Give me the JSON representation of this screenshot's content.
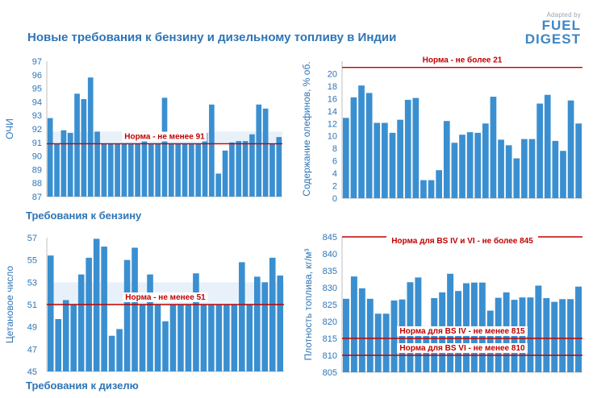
{
  "header": {
    "title": "Новые требования к бензину и дизельному топливу в Индии",
    "logo_adapted": "Adapted by",
    "logo_fuel": "FUEL",
    "logo_digest": "DIGEST"
  },
  "sections": {
    "gasoline": "Требования к бензину",
    "diesel": "Требования к дизелю"
  },
  "colors": {
    "bar": "#3a8fd0",
    "light_bar": "#e8f1fa",
    "norm_line": "#c00000",
    "norm_text": "#c00000",
    "axis_text": "#2e75b6"
  },
  "chart_data": [
    {
      "id": "octane",
      "type": "bar",
      "title": "",
      "xlabel": "",
      "ylabel": "ОЧИ",
      "ylim": [
        87,
        97
      ],
      "yticks": [
        87,
        88,
        89,
        90,
        91,
        92,
        93,
        94,
        95,
        96,
        97
      ],
      "values": [
        92.8,
        90.9,
        91.9,
        91.7,
        94.6,
        94.2,
        95.8,
        91.8,
        90.9,
        90.9,
        90.9,
        90.9,
        90.9,
        90.9,
        91.8,
        90.9,
        90.9,
        94.3,
        90.9,
        90.9,
        90.9,
        90.9,
        90.9,
        91.7,
        93.8,
        88.7,
        90.4,
        91.0,
        91.1,
        91.1,
        91.6,
        93.8,
        93.5,
        90.9,
        91.4
      ],
      "band": [
        90.9,
        91.8
      ],
      "norms": [
        {
          "value": 90.9,
          "label": "Норма - не менее 91"
        }
      ]
    },
    {
      "id": "olefins",
      "type": "bar",
      "title": "",
      "xlabel": "",
      "ylabel": "Содержание олефинов, % об.",
      "ylim": [
        0,
        22
      ],
      "yticks": [
        0,
        2,
        4,
        6,
        8,
        10,
        12,
        14,
        16,
        18,
        20
      ],
      "values": [
        12.9,
        16.2,
        18.1,
        16.9,
        12.1,
        12.1,
        10.5,
        12.6,
        15.8,
        16.1,
        2.9,
        2.9,
        4.5,
        12.4,
        8.9,
        10.2,
        10.6,
        10.5,
        12.0,
        16.3,
        9.4,
        8.5,
        6.4,
        9.5,
        9.5,
        15.2,
        16.6,
        9.2,
        7.6,
        15.7,
        12.0
      ],
      "norms": [
        {
          "value": 21,
          "label": "Норма - не более 21"
        }
      ]
    },
    {
      "id": "cetane",
      "type": "bar",
      "title": "",
      "xlabel": "",
      "ylabel": "Цетановое число",
      "ylim": [
        45,
        57
      ],
      "yticks": [
        45,
        47,
        49,
        51,
        53,
        55,
        57
      ],
      "ytick_labels": [
        "45",
        "47",
        "49",
        "",
        "53",
        "55",
        "57"
      ],
      "values": [
        55.4,
        49.7,
        51.4,
        51.0,
        53.7,
        55.2,
        56.9,
        56.2,
        48.2,
        48.8,
        55.0,
        56.1,
        51.0,
        53.7,
        51.0,
        49.5,
        51.0,
        51.0,
        51.0,
        53.8,
        51.0,
        51.0,
        51.0,
        51.0,
        51.0,
        54.8,
        51.0,
        53.5,
        53.0,
        55.2,
        53.6
      ],
      "band": [
        51.0,
        53.0
      ],
      "norms": [
        {
          "value": 51,
          "label": "Норма - не менее 51"
        }
      ],
      "norm_tick_label": "51"
    },
    {
      "id": "density",
      "type": "bar",
      "title": "",
      "xlabel": "",
      "ylabel": "Плотность топлива, кг/м³",
      "ylim": [
        805,
        845
      ],
      "yticks": [
        805,
        810,
        815,
        820,
        825,
        830,
        835,
        840,
        845
      ],
      "values": [
        826.7,
        833.3,
        829.8,
        826.7,
        822.3,
        822.3,
        826.2,
        826.5,
        831.6,
        833.0,
        818.6,
        826.9,
        828.6,
        834.1,
        829.0,
        831.3,
        831.5,
        831.5,
        823.2,
        827.0,
        828.6,
        826.4,
        827.1,
        827.1,
        830.6,
        826.9,
        825.8,
        826.6,
        826.6,
        830.3
      ],
      "base": 818.5,
      "norms": [
        {
          "value": 845,
          "label": "Норма для BS IV и VI - не более 845"
        },
        {
          "value": 815,
          "label": "Норма для BS IV - не менее 815"
        },
        {
          "value": 810,
          "label": "Норма для BS VI - не менее 810"
        }
      ]
    }
  ]
}
